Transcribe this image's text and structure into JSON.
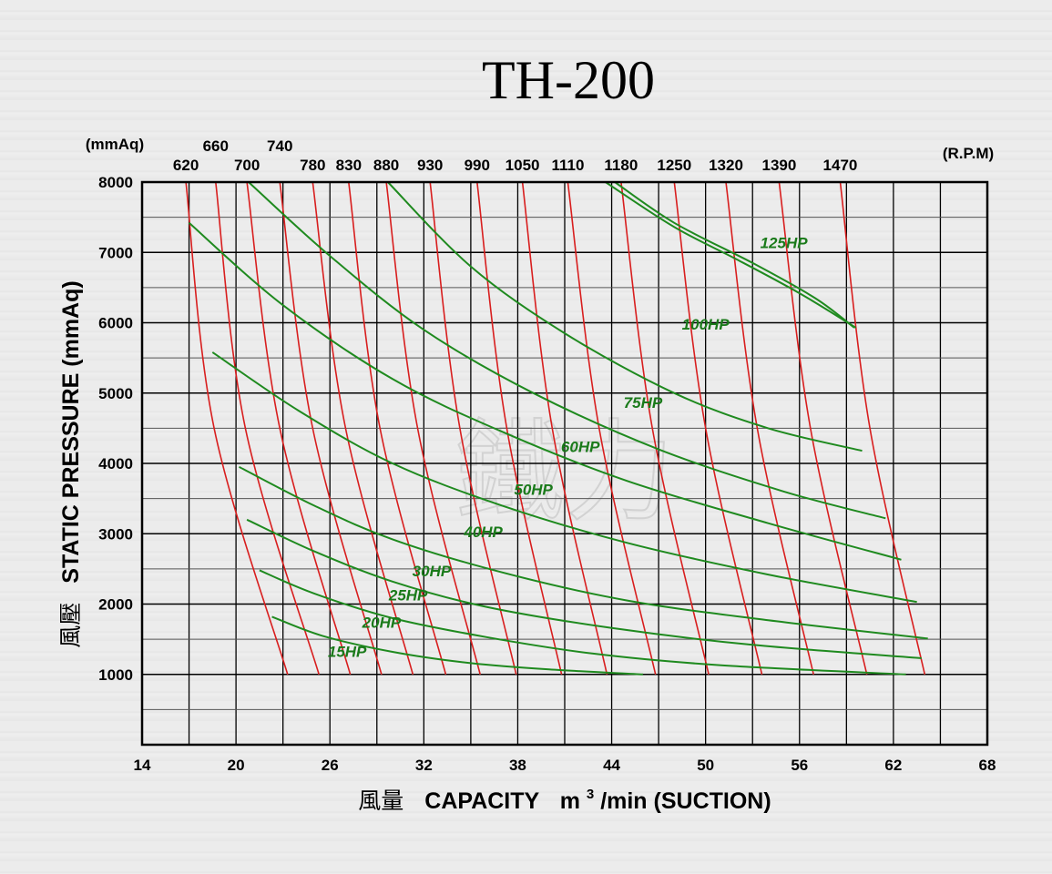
{
  "chart_data": {
    "type": "line",
    "title": "TH-200",
    "xlabel": "風量  CAPACITY  m3/min (SUCTION)",
    "xlabel_parts": {
      "cjk": "風量",
      "main": "CAPACITY",
      "unit_base": "m",
      "unit_sup": "3",
      "unit_tail": "/min (SUCTION)"
    },
    "ylabel": "風壓  STATIC  PRESSURE  (mmAq)",
    "ylabel_parts": {
      "cjk": "風壓",
      "main": "STATIC  PRESSURE  (mmAq)"
    },
    "top_left_unit": "(mmAq)",
    "top_right_unit": "(R.P.M)",
    "xlim": [
      14,
      68
    ],
    "ylim": [
      0,
      8000
    ],
    "x_ticks": [
      "14",
      "20",
      "26",
      "32",
      "38",
      "44",
      "50",
      "56",
      "62",
      "68"
    ],
    "y_ticks": [
      "1000",
      "2000",
      "3000",
      "4000",
      "5000",
      "6000",
      "7000",
      "8000"
    ],
    "grid": true,
    "watermark": "鐵力",
    "rpm_curves": [
      {
        "label": "620",
        "points": [
          [
            16.8,
            8000
          ],
          [
            18.6,
            4500
          ],
          [
            23.3,
            1000
          ]
        ]
      },
      {
        "label": "660",
        "points": [
          [
            18.7,
            8000
          ],
          [
            20.6,
            4500
          ],
          [
            25.3,
            1000
          ]
        ]
      },
      {
        "label": "700",
        "points": [
          [
            20.7,
            8000
          ],
          [
            22.8,
            4500
          ],
          [
            27.3,
            1000
          ]
        ]
      },
      {
        "label": "740",
        "points": [
          [
            22.8,
            8000
          ],
          [
            24.9,
            4500
          ],
          [
            29.3,
            1000
          ]
        ]
      },
      {
        "label": "780",
        "points": [
          [
            24.9,
            8000
          ],
          [
            27.0,
            4500
          ],
          [
            31.3,
            1000
          ]
        ]
      },
      {
        "label": "830",
        "points": [
          [
            27.2,
            8000
          ],
          [
            29.2,
            4500
          ],
          [
            33.4,
            1000
          ]
        ]
      },
      {
        "label": "880",
        "points": [
          [
            29.6,
            8000
          ],
          [
            31.6,
            4500
          ],
          [
            35.6,
            1000
          ]
        ]
      },
      {
        "label": "930",
        "points": [
          [
            32.4,
            8000
          ],
          [
            34.3,
            4500
          ],
          [
            37.9,
            1000
          ]
        ]
      },
      {
        "label": "990",
        "points": [
          [
            35.4,
            8000
          ],
          [
            37.3,
            4500
          ],
          [
            40.8,
            1000
          ]
        ]
      },
      {
        "label": "1050",
        "points": [
          [
            38.3,
            8000
          ],
          [
            40.2,
            4500
          ],
          [
            43.7,
            1000
          ]
        ]
      },
      {
        "label": "1110",
        "points": [
          [
            41.2,
            8000
          ],
          [
            43.2,
            4500
          ],
          [
            46.8,
            1000
          ]
        ]
      },
      {
        "label": "1180",
        "points": [
          [
            44.6,
            8000
          ],
          [
            46.6,
            4500
          ],
          [
            50.2,
            1000
          ]
        ]
      },
      {
        "label": "1250",
        "points": [
          [
            48.0,
            8000
          ],
          [
            50.0,
            4500
          ],
          [
            53.6,
            1000
          ]
        ]
      },
      {
        "label": "1320",
        "points": [
          [
            51.3,
            8000
          ],
          [
            53.3,
            4500
          ],
          [
            56.9,
            1000
          ]
        ]
      },
      {
        "label": "1390",
        "points": [
          [
            54.7,
            8000
          ],
          [
            56.7,
            4500
          ],
          [
            60.3,
            1000
          ]
        ]
      },
      {
        "label": "1470",
        "points": [
          [
            58.6,
            8000
          ],
          [
            60.5,
            4500
          ],
          [
            64.0,
            1000
          ]
        ]
      }
    ],
    "rpm_label_rows": [
      {
        "labels": [
          "660",
          "740"
        ],
        "row": "upper"
      },
      {
        "labels": [
          "620",
          "700",
          "780",
          "830",
          "880",
          "930",
          "990",
          "1050",
          "1110",
          "1180",
          "1250",
          "1320",
          "1390",
          "1470"
        ],
        "row": "lower"
      }
    ],
    "hp_curves": [
      {
        "label": "15HP",
        "points": [
          [
            22.3,
            1820
          ],
          [
            25.5,
            1550
          ],
          [
            30.0,
            1320
          ],
          [
            35.0,
            1160
          ],
          [
            40.0,
            1070
          ],
          [
            46.0,
            1000
          ]
        ],
        "label_at": [
          27.1,
          1330
        ]
      },
      {
        "label": "20HP",
        "points": [
          [
            21.5,
            2480
          ],
          [
            25.0,
            2150
          ],
          [
            30.0,
            1800
          ],
          [
            36.0,
            1530
          ],
          [
            43.0,
            1290
          ],
          [
            51.0,
            1130
          ],
          [
            62.8,
            1000
          ]
        ],
        "label_at": [
          29.3,
          1740
        ]
      },
      {
        "label": "25HP",
        "points": [
          [
            20.7,
            3200
          ],
          [
            25.0,
            2750
          ],
          [
            30.0,
            2320
          ],
          [
            36.0,
            1960
          ],
          [
            44.0,
            1660
          ],
          [
            53.0,
            1420
          ],
          [
            63.8,
            1230
          ]
        ],
        "label_at": [
          31.0,
          2130
        ]
      },
      {
        "label": "30HP",
        "points": [
          [
            20.2,
            3950
          ],
          [
            25.0,
            3400
          ],
          [
            30.0,
            2920
          ],
          [
            37.0,
            2450
          ],
          [
            45.0,
            2050
          ],
          [
            54.0,
            1770
          ],
          [
            64.2,
            1510
          ]
        ],
        "label_at": [
          32.5,
          2470
        ]
      },
      {
        "label": "40HP",
        "points": [
          [
            18.5,
            5580
          ],
          [
            24.0,
            4750
          ],
          [
            30.0,
            4000
          ],
          [
            37.0,
            3400
          ],
          [
            45.0,
            2870
          ],
          [
            54.0,
            2420
          ],
          [
            63.5,
            2030
          ]
        ],
        "label_at": [
          35.8,
          3030
        ]
      },
      {
        "label": "50HP",
        "points": [
          [
            17.0,
            7420
          ],
          [
            23.0,
            6250
          ],
          [
            30.0,
            5200
          ],
          [
            37.0,
            4450
          ],
          [
            45.0,
            3750
          ],
          [
            54.0,
            3150
          ],
          [
            62.5,
            2630
          ]
        ],
        "label_at": [
          39.0,
          3630
        ]
      },
      {
        "label": "60HP",
        "points": [
          [
            20.8,
            8000
          ],
          [
            26.0,
            6950
          ],
          [
            32.0,
            5900
          ],
          [
            39.0,
            5000
          ],
          [
            47.0,
            4200
          ],
          [
            55.0,
            3600
          ],
          [
            61.5,
            3220
          ]
        ],
        "label_at": [
          42.0,
          4240
        ]
      },
      {
        "label": "75HP",
        "points": [
          [
            29.7,
            8000
          ],
          [
            35.0,
            6800
          ],
          [
            41.0,
            5850
          ],
          [
            48.0,
            5000
          ],
          [
            54.0,
            4500
          ],
          [
            60.0,
            4180
          ]
        ],
        "label_at": [
          46.0,
          4870
        ]
      },
      {
        "label": "100HP",
        "points": [
          [
            44.2,
            8000
          ],
          [
            48.0,
            7420
          ],
          [
            53.0,
            6850
          ],
          [
            57.0,
            6350
          ],
          [
            59.5,
            5930
          ]
        ],
        "label_at": [
          50.0,
          5980
        ]
      },
      {
        "label": "125HP",
        "points": [],
        "label_at": [
          55.0,
          7140
        ]
      }
    ]
  }
}
